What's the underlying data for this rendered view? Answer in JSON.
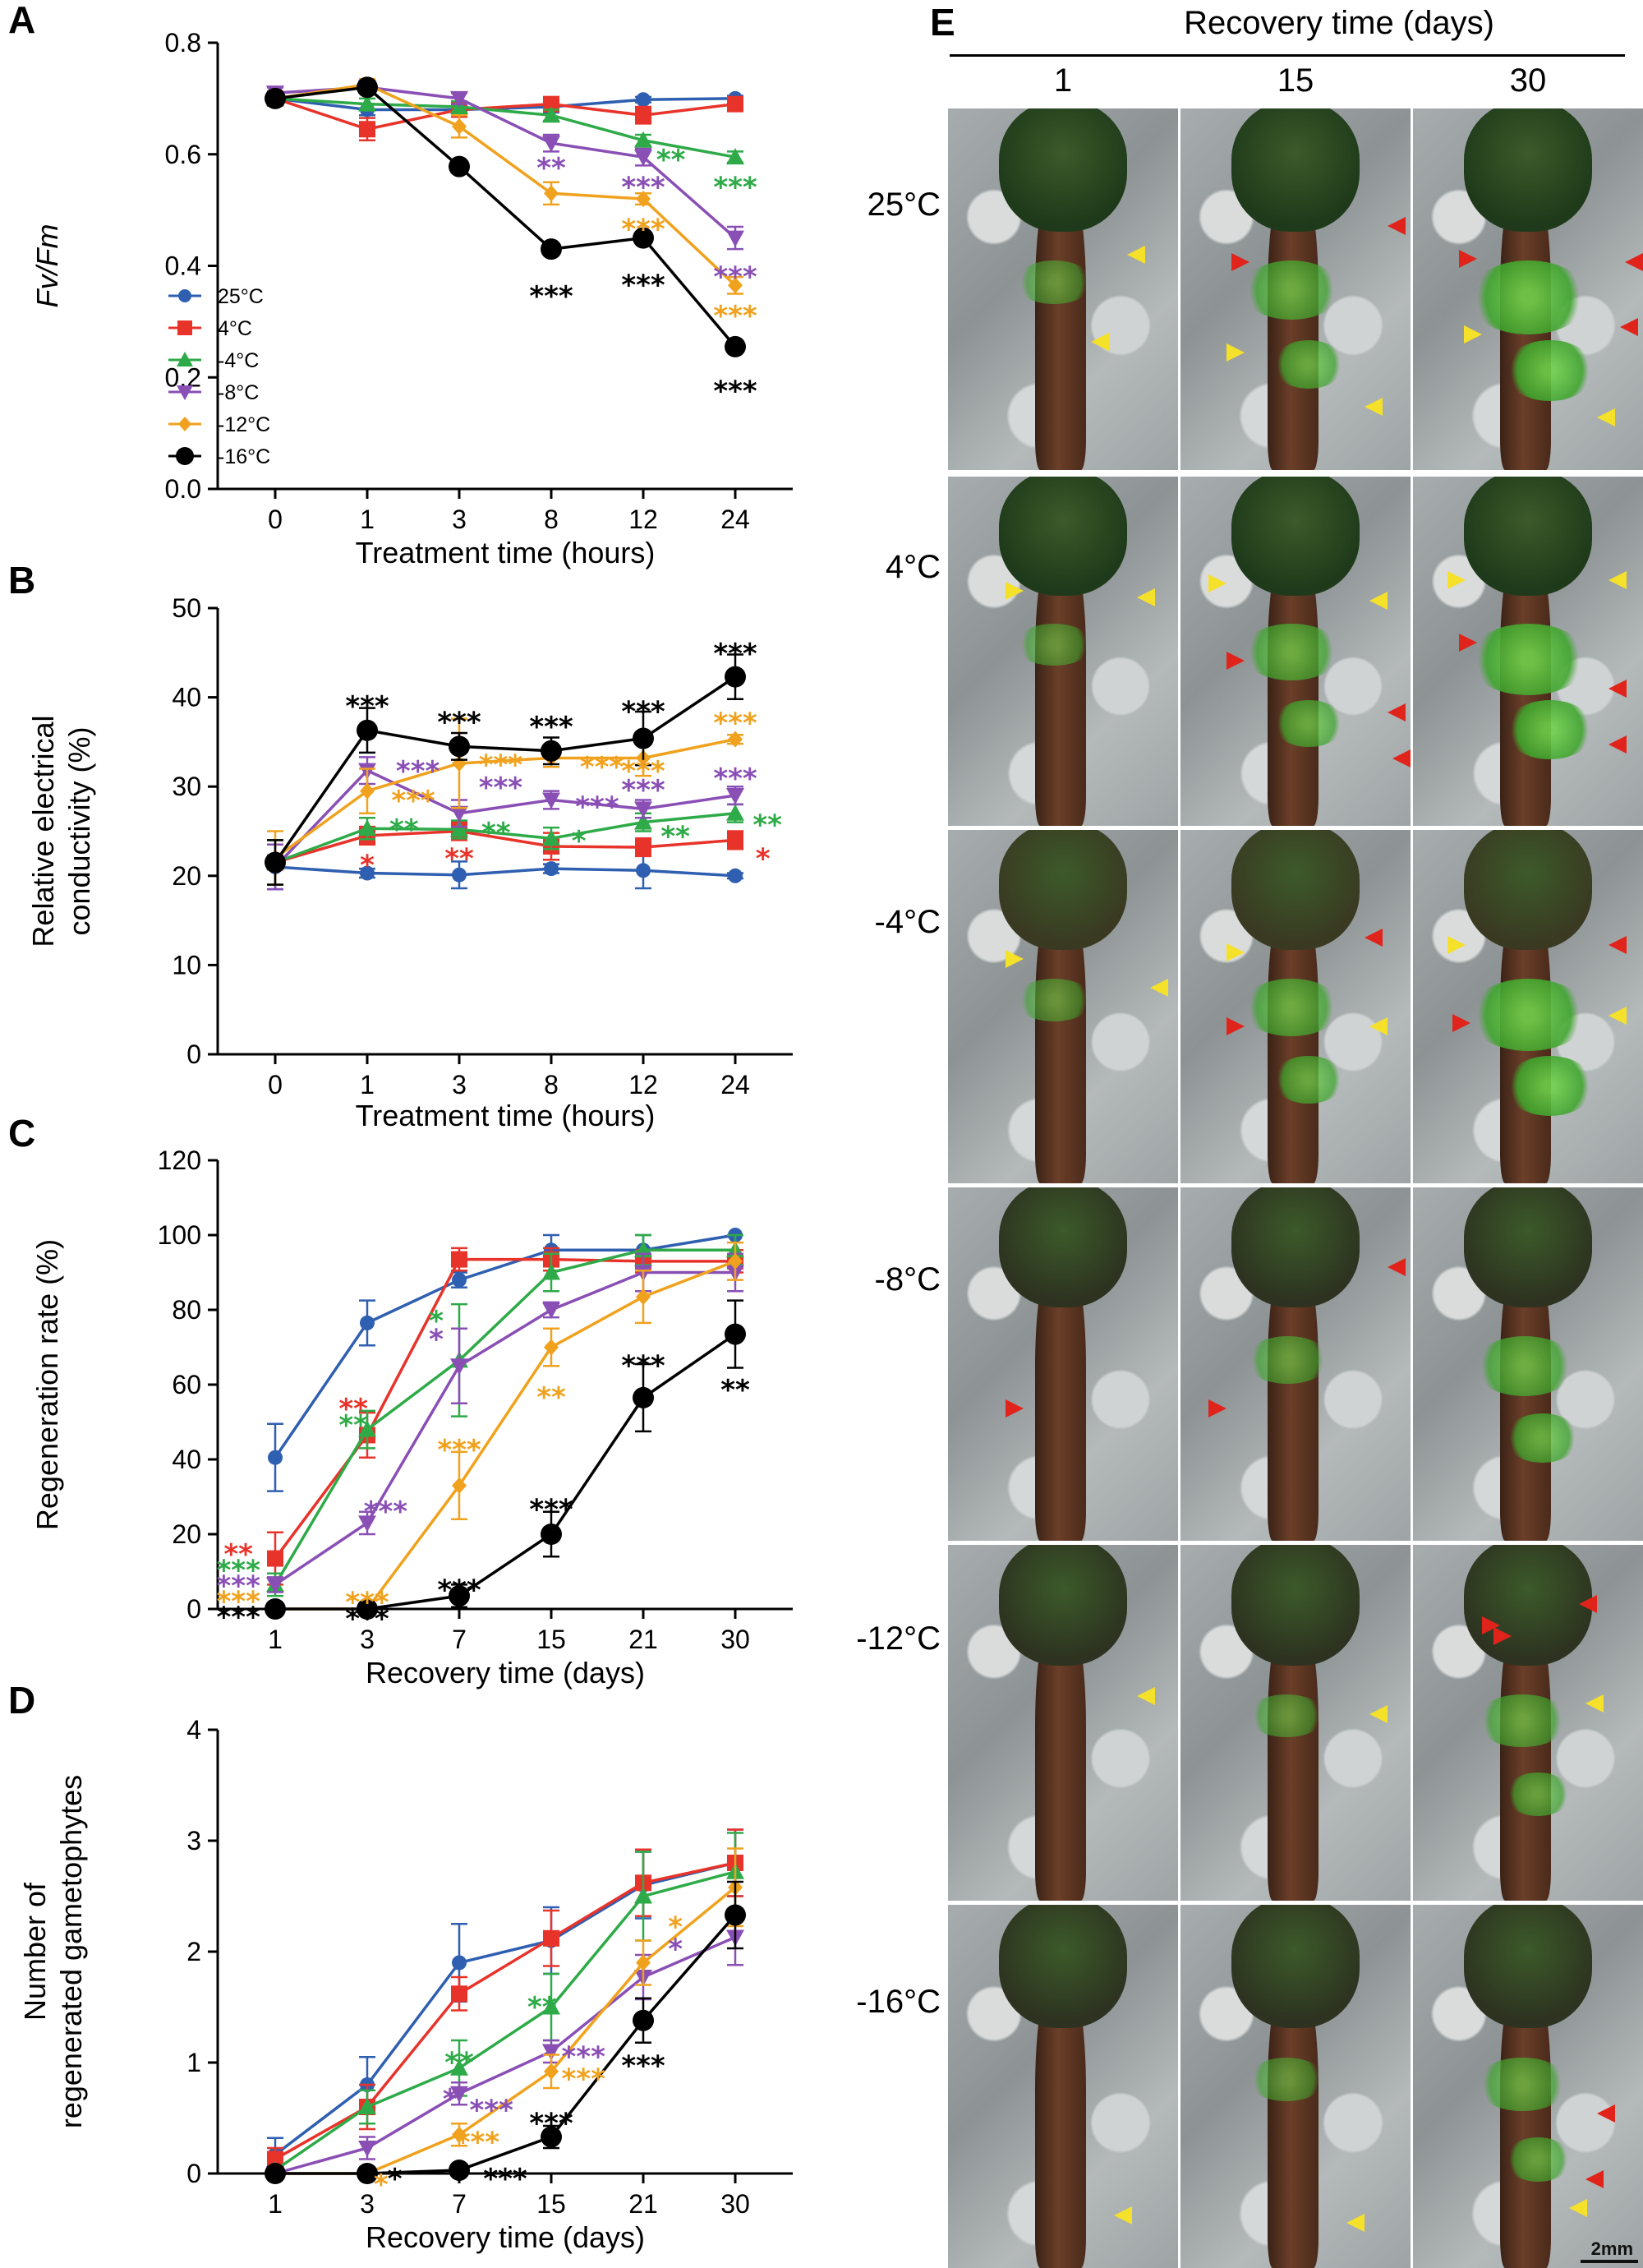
{
  "colors": {
    "25C": "#2f5fb0",
    "4C": "#e8332a",
    "m4C": "#2eaa48",
    "m8C": "#8a4fb5",
    "m12C": "#f0a21e",
    "m16C": "#000000"
  },
  "legend": [
    "25°C",
    "4°C",
    "-4°C",
    "-8°C",
    "-12°C",
    "-16°C"
  ],
  "chart_data": [
    {
      "panel": "A",
      "type": "line",
      "ylabel": "Fv/Fm",
      "xlabel": "Treatment time (hours)",
      "categories": [
        "0",
        "1",
        "3",
        "8",
        "12",
        "24"
      ],
      "ylim": [
        0,
        0.8
      ],
      "yticks": [
        "0.0",
        "0.2",
        "0.4",
        "0.6",
        "0.8"
      ],
      "series": [
        {
          "name": "25°C",
          "values": [
            0.7,
            0.68,
            0.68,
            0.685,
            0.698,
            0.7
          ],
          "err": [
            0.01,
            0.01,
            0.01,
            0.01,
            0.005,
            0.005
          ]
        },
        {
          "name": "4°C",
          "values": [
            0.7,
            0.645,
            0.68,
            0.69,
            0.67,
            0.69
          ],
          "err": [
            0.01,
            0.02,
            0.01,
            0.01,
            0.015,
            0.01
          ]
        },
        {
          "name": "-4°C",
          "values": [
            0.7,
            0.69,
            0.685,
            0.67,
            0.625,
            0.595
          ],
          "err": [
            0.01,
            0.01,
            0.01,
            0.01,
            0.01,
            0.01
          ]
        },
        {
          "name": "-8°C",
          "values": [
            0.71,
            0.72,
            0.7,
            0.62,
            0.595,
            0.45
          ],
          "err": [
            0.01,
            0.01,
            0.01,
            0.015,
            0.015,
            0.02
          ]
        },
        {
          "name": "-12°C",
          "values": [
            0.7,
            0.725,
            0.65,
            0.53,
            0.52,
            0.365
          ],
          "err": [
            0.01,
            0.01,
            0.02,
            0.02,
            0.01,
            0.015
          ]
        },
        {
          "name": "-16°C",
          "values": [
            0.7,
            0.72,
            0.578,
            0.43,
            0.45,
            0.255
          ],
          "err": [
            0.01,
            0.01,
            0.01,
            0.01,
            0.01,
            0.01
          ]
        }
      ],
      "annotations": [
        {
          "cat": 3,
          "y": 0.585,
          "text": "**",
          "color": "#8a4fb5"
        },
        {
          "cat": 4,
          "y": 0.55,
          "text": "***",
          "color": "#8a4fb5"
        },
        {
          "cat": 4.3,
          "y": 0.6,
          "text": "**",
          "color": "#2eaa48"
        },
        {
          "cat": 5,
          "y": 0.55,
          "text": "***",
          "color": "#2eaa48"
        },
        {
          "cat": 4,
          "y": 0.475,
          "text": "***",
          "color": "#f0a21e"
        },
        {
          "cat": 5,
          "y": 0.39,
          "text": "***",
          "color": "#8a4fb5"
        },
        {
          "cat": 5,
          "y": 0.32,
          "text": "***",
          "color": "#f0a21e"
        },
        {
          "cat": 3,
          "y": 0.355,
          "text": "***",
          "color": "#000000"
        },
        {
          "cat": 4,
          "y": 0.375,
          "text": "***",
          "color": "#000000"
        },
        {
          "cat": 5,
          "y": 0.185,
          "text": "***",
          "color": "#000000"
        }
      ]
    },
    {
      "panel": "B",
      "type": "line",
      "ylabel": "Relative electrical conductivity (%)",
      "xlabel": "Treatment time (hours)",
      "categories": [
        "0",
        "1",
        "3",
        "8",
        "12",
        "24"
      ],
      "ylim": [
        0,
        50
      ],
      "yticks": [
        "0",
        "10",
        "20",
        "30",
        "40",
        "50"
      ],
      "series": [
        {
          "name": "25°C",
          "values": [
            21,
            20.3,
            20.1,
            20.8,
            20.6,
            20
          ],
          "err": [
            2.5,
            0.5,
            1.5,
            0.5,
            2,
            0.3
          ]
        },
        {
          "name": "4°C",
          "values": [
            21.5,
            24.5,
            25,
            23.3,
            23.2,
            24
          ],
          "err": [
            2.5,
            1,
            1,
            1.5,
            1,
            1
          ]
        },
        {
          "name": "-4°C",
          "values": [
            21.5,
            25.3,
            25.2,
            24.2,
            26,
            27
          ],
          "err": [
            2.5,
            1.2,
            1,
            1.2,
            1,
            1
          ]
        },
        {
          "name": "-8°C",
          "values": [
            21,
            31.8,
            27,
            28.5,
            27.5,
            29
          ],
          "err": [
            2.5,
            1.5,
            1.5,
            1,
            1,
            1
          ]
        },
        {
          "name": "-12°C",
          "values": [
            22,
            29.5,
            32.6,
            33.2,
            33.2,
            35.3
          ],
          "err": [
            3,
            2.5,
            5,
            1,
            2,
            0.5
          ]
        },
        {
          "name": "-16°C",
          "values": [
            21.5,
            36.3,
            34.5,
            34,
            35.4,
            42.3
          ],
          "err": [
            2.5,
            2.5,
            1.5,
            1.5,
            3,
            2.5
          ]
        }
      ],
      "annotations": [
        {
          "cat": 1,
          "y": 39.6,
          "text": "***",
          "color": "#000000"
        },
        {
          "cat": 2,
          "y": 37.8,
          "text": "***",
          "color": "#000000"
        },
        {
          "cat": 3,
          "y": 37.3,
          "text": "***",
          "color": "#000000"
        },
        {
          "cat": 4,
          "y": 39.0,
          "text": "***",
          "color": "#000000"
        },
        {
          "cat": 5,
          "y": 45.5,
          "text": "***",
          "color": "#000000"
        },
        {
          "cat": 1.55,
          "y": 32.3,
          "text": "***",
          "color": "#8a4fb5"
        },
        {
          "cat": 1.5,
          "y": 29.0,
          "text": "***",
          "color": "#f0a21e"
        },
        {
          "cat": 1.4,
          "y": 25.8,
          "text": "**",
          "color": "#2eaa48"
        },
        {
          "cat": 1,
          "y": 21.8,
          "text": "*",
          "color": "#e8332a"
        },
        {
          "cat": 2.45,
          "y": 33.0,
          "text": "***",
          "color": "#f0a21e"
        },
        {
          "cat": 2.45,
          "y": 30.5,
          "text": "***",
          "color": "#8a4fb5"
        },
        {
          "cat": 2.4,
          "y": 25.4,
          "text": "**",
          "color": "#2eaa48"
        },
        {
          "cat": 2,
          "y": 22.5,
          "text": "**",
          "color": "#e8332a"
        },
        {
          "cat": 3.55,
          "y": 32.8,
          "text": "***",
          "color": "#f0a21e"
        },
        {
          "cat": 3.5,
          "y": 28.3,
          "text": "***",
          "color": "#8a4fb5"
        },
        {
          "cat": 3.3,
          "y": 24.5,
          "text": "*",
          "color": "#2eaa48"
        },
        {
          "cat": 4,
          "y": 32.3,
          "text": "***",
          "color": "#f0a21e"
        },
        {
          "cat": 4,
          "y": 30.2,
          "text": "***",
          "color": "#8a4fb5"
        },
        {
          "cat": 4.35,
          "y": 25.0,
          "text": "**",
          "color": "#2eaa48"
        },
        {
          "cat": 5,
          "y": 37.7,
          "text": "***",
          "color": "#f0a21e"
        },
        {
          "cat": 5,
          "y": 31.5,
          "text": "***",
          "color": "#8a4fb5"
        },
        {
          "cat": 5.35,
          "y": 26.3,
          "text": "**",
          "color": "#2eaa48"
        },
        {
          "cat": 5.3,
          "y": 22.5,
          "text": "*",
          "color": "#e8332a"
        }
      ]
    },
    {
      "panel": "C",
      "type": "line",
      "ylabel": "Regeneration rate (%)",
      "xlabel": "Recovery time (days)",
      "categories": [
        "1",
        "3",
        "7",
        "15",
        "21",
        "30"
      ],
      "ylim": [
        0,
        120
      ],
      "yticks": [
        "0",
        "20",
        "40",
        "60",
        "80",
        "100",
        "120"
      ],
      "series": [
        {
          "name": "25°C",
          "values": [
            40.5,
            76.5,
            88,
            96,
            96,
            100
          ],
          "err": [
            9,
            6,
            2,
            4,
            4,
            0
          ]
        },
        {
          "name": "4°C",
          "values": [
            13.5,
            46.5,
            93.5,
            93.5,
            93,
            93
          ],
          "err": [
            7,
            6,
            3,
            3,
            3,
            3
          ]
        },
        {
          "name": "-4°C",
          "values": [
            6.5,
            48,
            66.5,
            90,
            96,
            96
          ],
          "err": [
            3,
            5,
            15,
            5,
            4,
            4
          ]
        },
        {
          "name": "-8°C",
          "values": [
            6.5,
            23,
            65,
            80,
            90,
            90
          ],
          "err": [
            2,
            3,
            10,
            2,
            5,
            5
          ]
        },
        {
          "name": "-12°C",
          "values": [
            0,
            0,
            33,
            70,
            83.5,
            93
          ],
          "err": [
            0,
            0,
            9,
            5,
            7,
            5
          ]
        },
        {
          "name": "-16°C",
          "values": [
            0,
            0,
            3.5,
            20,
            56.5,
            73.5
          ],
          "err": [
            0,
            0,
            3,
            6,
            9,
            9
          ]
        }
      ],
      "annotations": [
        {
          "cat": -0.4,
          "y": 16,
          "text": "**",
          "color": "#e8332a"
        },
        {
          "cat": -0.4,
          "y": 11.8,
          "text": "***",
          "color": "#2eaa48"
        },
        {
          "cat": -0.4,
          "y": 7.6,
          "text": "***",
          "color": "#8a4fb5"
        },
        {
          "cat": -0.4,
          "y": 3.4,
          "text": "***",
          "color": "#f0a21e"
        },
        {
          "cat": -0.4,
          "y": -0.8,
          "text": "***",
          "color": "#000000"
        },
        {
          "cat": 0.85,
          "y": 55,
          "text": "**",
          "color": "#e8332a"
        },
        {
          "cat": 0.85,
          "y": 50.5,
          "text": "**",
          "color": "#2eaa48"
        },
        {
          "cat": 1.2,
          "y": 27.5,
          "text": "***",
          "color": "#8a4fb5"
        },
        {
          "cat": 1,
          "y": 3.2,
          "text": "***",
          "color": "#f0a21e"
        },
        {
          "cat": 1,
          "y": -1.2,
          "text": "***",
          "color": "#000000"
        },
        {
          "cat": 1.75,
          "y": 78.5,
          "text": "*",
          "color": "#2eaa48"
        },
        {
          "cat": 1.75,
          "y": 73.5,
          "text": "*",
          "color": "#8a4fb5"
        },
        {
          "cat": 2,
          "y": 44,
          "text": "***",
          "color": "#f0a21e"
        },
        {
          "cat": 2,
          "y": 6.5,
          "text": "***",
          "color": "#000000"
        },
        {
          "cat": 3,
          "y": 58,
          "text": "**",
          "color": "#f0a21e"
        },
        {
          "cat": 3,
          "y": 28,
          "text": "***",
          "color": "#000000"
        },
        {
          "cat": 4,
          "y": 66.5,
          "text": "***",
          "color": "#000000"
        },
        {
          "cat": 5,
          "y": 60,
          "text": "**",
          "color": "#000000"
        }
      ]
    },
    {
      "panel": "D",
      "type": "line",
      "ylabel": "Number of regenerated gametophytes",
      "xlabel": "Recovery time (days)",
      "categories": [
        "1",
        "3",
        "7",
        "15",
        "21",
        "30"
      ],
      "ylim": [
        0,
        4
      ],
      "yticks": [
        "0",
        "1",
        "2",
        "3",
        "4"
      ],
      "series": [
        {
          "name": "25°C",
          "values": [
            0.17,
            0.8,
            1.9,
            2.1,
            2.6,
            2.8
          ],
          "err": [
            0.15,
            0.25,
            0.35,
            0.3,
            0.3,
            0.3
          ]
        },
        {
          "name": "4°C",
          "values": [
            0.13,
            0.6,
            1.62,
            2.12,
            2.62,
            2.8
          ],
          "err": [
            0.1,
            0.2,
            0.15,
            0.25,
            0.3,
            0.3
          ]
        },
        {
          "name": "-4°C",
          "values": [
            0.03,
            0.6,
            0.95,
            1.5,
            2.5,
            2.72
          ],
          "err": [
            0.03,
            0.15,
            0.25,
            0.3,
            0.4,
            0.35
          ]
        },
        {
          "name": "-8°C",
          "values": [
            0,
            0.23,
            0.72,
            1.1,
            1.77,
            2.13
          ],
          "err": [
            0,
            0.1,
            0.1,
            0.1,
            0.2,
            0.25
          ]
        },
        {
          "name": "-12°C",
          "values": [
            0,
            0,
            0.35,
            0.92,
            1.9,
            2.58
          ],
          "err": [
            0,
            0,
            0.1,
            0.15,
            0.2,
            0.35
          ]
        },
        {
          "name": "-16°C",
          "values": [
            0,
            0,
            0.03,
            0.33,
            1.38,
            2.33
          ],
          "err": [
            0,
            0,
            0.03,
            0.1,
            0.2,
            0.3
          ]
        }
      ],
      "annotations": [
        {
          "cat": 1.15,
          "y": -0.05,
          "text": "*",
          "color": "#f0a21e"
        },
        {
          "cat": 1.3,
          "y": 0.0,
          "text": "*",
          "color": "#000000"
        },
        {
          "cat": 1.9,
          "y": 0.72,
          "text": "*",
          "color": "#8a4fb5"
        },
        {
          "cat": 2,
          "y": 1.05,
          "text": "**",
          "color": "#2eaa48"
        },
        {
          "cat": 2.35,
          "y": 0.62,
          "text": "***",
          "color": "#8a4fb5"
        },
        {
          "cat": 2.2,
          "y": 0.33,
          "text": "***",
          "color": "#f0a21e"
        },
        {
          "cat": 2.5,
          "y": 0.0,
          "text": "***",
          "color": "#000000"
        },
        {
          "cat": 2.9,
          "y": 1.55,
          "text": "**",
          "color": "#2eaa48"
        },
        {
          "cat": 3.35,
          "y": 1.1,
          "text": "***",
          "color": "#8a4fb5"
        },
        {
          "cat": 3.35,
          "y": 0.9,
          "text": "***",
          "color": "#f0a21e"
        },
        {
          "cat": 3,
          "y": 0.5,
          "text": "***",
          "color": "#000000"
        },
        {
          "cat": 4.35,
          "y": 2.27,
          "text": "*",
          "color": "#f0a21e"
        },
        {
          "cat": 4.35,
          "y": 2.07,
          "text": "*",
          "color": "#8a4fb5"
        },
        {
          "cat": 4,
          "y": 1.02,
          "text": "***",
          "color": "#000000"
        }
      ]
    }
  ],
  "photo_panel": {
    "letter": "E",
    "title": "Recovery time (days)",
    "columns": [
      "1",
      "15",
      "30"
    ],
    "rows": [
      "25°C",
      "4°C",
      "-4°C",
      "-8°C",
      "-12°C",
      "-16°C"
    ],
    "scale_bar": "2mm",
    "arrow_colors": {
      "new": "#f5e12a",
      "regenerated": "#e0241b"
    }
  }
}
